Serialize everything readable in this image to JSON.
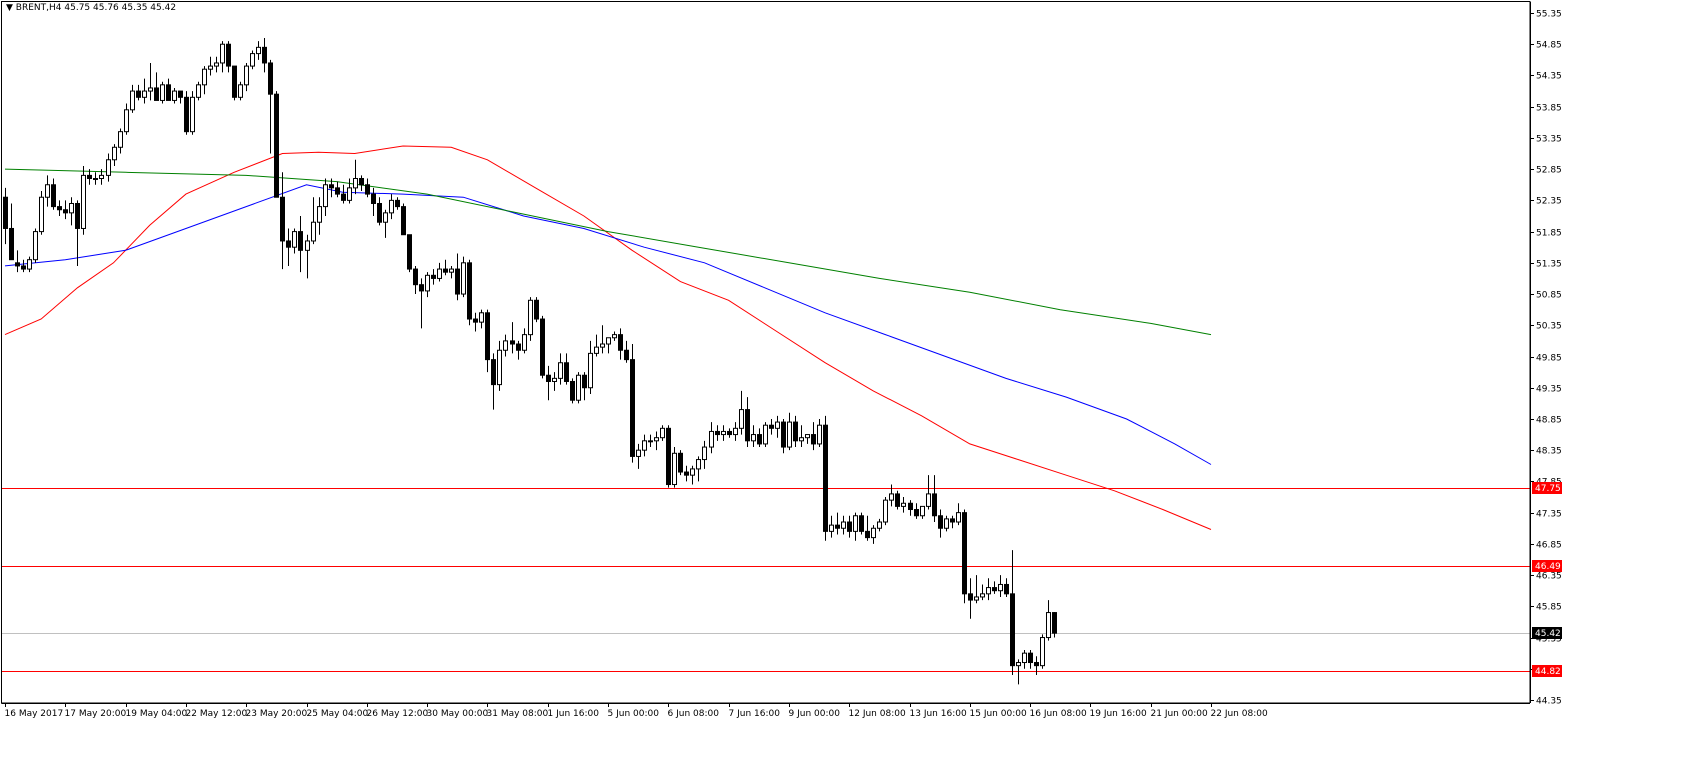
{
  "header": {
    "arrow": "▼",
    "symbol": "BRENT,H4",
    "open": "45.75",
    "high": "45.76",
    "low": "45.35",
    "close": "45.42"
  },
  "chart_data": {
    "type": "candlestick",
    "symbol": "BRENT",
    "timeframe": "H4",
    "y_axis": {
      "ylim": [
        44.35,
        55.35
      ],
      "ticks": [
        "55.35",
        "54.85",
        "54.35",
        "53.85",
        "53.35",
        "52.85",
        "52.35",
        "51.85",
        "51.35",
        "50.85",
        "50.35",
        "49.85",
        "49.35",
        "48.85",
        "48.35",
        "47.85",
        "47.35",
        "46.85",
        "46.35",
        "45.85",
        "45.35",
        "44.85",
        "44.35"
      ]
    },
    "x_axis": {
      "labels": [
        {
          "bar": 0,
          "text": "16 May 2017"
        },
        {
          "bar": 10,
          "text": "17 May 20:00"
        },
        {
          "bar": 20,
          "text": "19 May 04:00"
        },
        {
          "bar": 30,
          "text": "22 May 12:00"
        },
        {
          "bar": 40,
          "text": "23 May 20:00"
        },
        {
          "bar": 50,
          "text": "25 May 04:00"
        },
        {
          "bar": 60,
          "text": "26 May 12:00"
        },
        {
          "bar": 70,
          "text": "30 May 00:00"
        },
        {
          "bar": 80,
          "text": "31 May 08:00"
        },
        {
          "bar": 90,
          "text": "1 Jun 16:00"
        },
        {
          "bar": 100,
          "text": "5 Jun 00:00"
        },
        {
          "bar": 110,
          "text": "6 Jun 08:00"
        },
        {
          "bar": 120,
          "text": "7 Jun 16:00"
        },
        {
          "bar": 130,
          "text": "9 Jun 00:00"
        },
        {
          "bar": 140,
          "text": "12 Jun 08:00"
        },
        {
          "bar": 150,
          "text": "13 Jun 16:00"
        },
        {
          "bar": 160,
          "text": "15 Jun 00:00"
        },
        {
          "bar": 170,
          "text": "16 Jun 08:00"
        },
        {
          "bar": 180,
          "text": "19 Jun 16:00"
        },
        {
          "bar": 190,
          "text": "21 Jun 00:00"
        },
        {
          "bar": 200,
          "text": "22 Jun 08:00"
        }
      ]
    },
    "levels": [
      {
        "value": 47.75,
        "label": "47.75",
        "color": "#ff0000"
      },
      {
        "value": 46.49,
        "label": "46.49",
        "color": "#ff0000"
      },
      {
        "value": 44.82,
        "label": "44.82",
        "color": "#ff0000"
      }
    ],
    "current_price": {
      "value": 45.42,
      "label": "45.42",
      "line_color": "#c0c0c0"
    },
    "colors": {
      "background": "#ffffff",
      "candle": "#000000",
      "bull_body": "#ffffff",
      "bear_body": "#000000",
      "ma_red": "#ff0000",
      "ma_blue": "#0000ff",
      "ma_green": "#008000"
    },
    "candles_ohlc": [
      [
        52.4,
        52.55,
        51.65,
        51.9
      ],
      [
        51.9,
        52.3,
        51.4,
        51.4
      ],
      [
        51.35,
        51.55,
        51.2,
        51.3
      ],
      [
        51.3,
        51.4,
        51.2,
        51.25
      ],
      [
        51.25,
        51.45,
        51.2,
        51.4
      ],
      [
        51.4,
        51.9,
        51.35,
        51.85
      ],
      [
        51.85,
        52.5,
        51.8,
        52.4
      ],
      [
        52.4,
        52.75,
        52.25,
        52.6
      ],
      [
        52.6,
        52.7,
        52.2,
        52.25
      ],
      [
        52.25,
        52.35,
        52.1,
        52.2
      ],
      [
        52.2,
        52.35,
        52.05,
        52.15
      ],
      [
        52.15,
        52.4,
        51.95,
        52.3
      ],
      [
        52.3,
        52.35,
        51.3,
        51.9
      ],
      [
        51.9,
        52.9,
        51.8,
        52.75
      ],
      [
        52.75,
        52.85,
        52.6,
        52.7
      ],
      [
        52.7,
        52.8,
        52.6,
        52.7
      ],
      [
        52.7,
        52.85,
        52.6,
        52.75
      ],
      [
        52.75,
        53.1,
        52.65,
        53.0
      ],
      [
        53.0,
        53.25,
        52.9,
        53.2
      ],
      [
        53.2,
        53.5,
        53.1,
        53.45
      ],
      [
        53.45,
        53.9,
        53.4,
        53.8
      ],
      [
        53.8,
        54.2,
        53.75,
        54.1
      ],
      [
        54.1,
        54.2,
        53.95,
        54.0
      ],
      [
        54.0,
        54.3,
        53.9,
        54.1
      ],
      [
        54.1,
        54.55,
        53.95,
        54.15
      ],
      [
        54.15,
        54.4,
        53.95,
        53.95
      ],
      [
        53.95,
        54.25,
        53.9,
        54.2
      ],
      [
        54.2,
        54.3,
        53.95,
        53.95
      ],
      [
        53.95,
        54.15,
        53.9,
        54.1
      ],
      [
        54.1,
        54.1,
        53.9,
        54.0
      ],
      [
        54.0,
        54.1,
        53.4,
        53.45
      ],
      [
        53.45,
        54.1,
        53.4,
        54.0
      ],
      [
        54.0,
        54.25,
        53.95,
        54.2
      ],
      [
        54.2,
        54.5,
        54.05,
        54.45
      ],
      [
        54.45,
        54.65,
        54.35,
        54.5
      ],
      [
        54.5,
        54.65,
        54.4,
        54.55
      ],
      [
        54.55,
        54.9,
        54.4,
        54.85
      ],
      [
        54.85,
        54.9,
        54.4,
        54.5
      ],
      [
        54.5,
        54.5,
        53.95,
        54.0
      ],
      [
        54.0,
        54.25,
        53.95,
        54.2
      ],
      [
        54.2,
        54.55,
        54.1,
        54.5
      ],
      [
        54.5,
        54.75,
        54.45,
        54.7
      ],
      [
        54.7,
        54.9,
        54.6,
        54.8
      ],
      [
        54.8,
        54.95,
        54.4,
        54.55
      ],
      [
        54.55,
        54.6,
        53.1,
        54.05
      ],
      [
        54.05,
        54.1,
        52.4,
        52.4
      ],
      [
        52.4,
        52.8,
        51.25,
        51.7
      ],
      [
        51.7,
        51.9,
        51.3,
        51.6
      ],
      [
        51.6,
        51.9,
        51.5,
        51.85
      ],
      [
        51.85,
        52.1,
        51.2,
        51.55
      ],
      [
        51.55,
        51.8,
        51.1,
        51.7
      ],
      [
        51.7,
        52.4,
        51.65,
        52.0
      ],
      [
        52.0,
        52.4,
        51.8,
        52.25
      ],
      [
        52.25,
        52.7,
        52.1,
        52.6
      ],
      [
        52.6,
        52.7,
        52.4,
        52.55
      ],
      [
        52.55,
        52.65,
        52.4,
        52.45
      ],
      [
        52.45,
        52.6,
        52.3,
        52.35
      ],
      [
        52.35,
        52.7,
        52.3,
        52.55
      ],
      [
        52.55,
        53.0,
        52.45,
        52.7
      ],
      [
        52.7,
        52.75,
        52.5,
        52.6
      ],
      [
        52.6,
        52.7,
        52.4,
        52.45
      ],
      [
        52.45,
        52.55,
        52.1,
        52.3
      ],
      [
        52.3,
        52.4,
        51.95,
        52.0
      ],
      [
        52.0,
        52.2,
        51.75,
        52.15
      ],
      [
        52.15,
        52.45,
        52.05,
        52.35
      ],
      [
        52.35,
        52.4,
        52.2,
        52.25
      ],
      [
        52.25,
        52.3,
        51.8,
        51.8
      ],
      [
        51.8,
        51.8,
        51.2,
        51.25
      ],
      [
        51.25,
        51.3,
        50.85,
        51.0
      ],
      [
        51.0,
        51.1,
        50.3,
        50.9
      ],
      [
        50.9,
        51.2,
        50.8,
        51.15
      ],
      [
        51.15,
        51.25,
        51.0,
        51.1
      ],
      [
        51.1,
        51.35,
        51.05,
        51.25
      ],
      [
        51.25,
        51.4,
        51.15,
        51.2
      ],
      [
        51.2,
        51.3,
        51.1,
        51.25
      ],
      [
        51.25,
        51.5,
        50.75,
        50.85
      ],
      [
        50.85,
        51.45,
        50.8,
        51.35
      ],
      [
        51.35,
        51.4,
        50.35,
        50.45
      ],
      [
        50.45,
        50.55,
        50.25,
        50.4
      ],
      [
        50.4,
        50.6,
        50.3,
        50.55
      ],
      [
        50.55,
        50.6,
        49.6,
        49.8
      ],
      [
        49.8,
        49.9,
        49.0,
        49.4
      ],
      [
        49.4,
        50.1,
        49.3,
        49.95
      ],
      [
        49.95,
        50.2,
        49.85,
        50.1
      ],
      [
        50.1,
        50.4,
        49.9,
        50.05
      ],
      [
        50.05,
        50.1,
        49.8,
        49.95
      ],
      [
        49.95,
        50.3,
        49.9,
        50.2
      ],
      [
        50.2,
        50.8,
        50.1,
        50.75
      ],
      [
        50.75,
        50.8,
        50.4,
        50.45
      ],
      [
        50.45,
        50.5,
        49.5,
        49.55
      ],
      [
        49.55,
        49.7,
        49.15,
        49.45
      ],
      [
        49.45,
        49.6,
        49.3,
        49.5
      ],
      [
        49.5,
        49.9,
        49.4,
        49.75
      ],
      [
        49.75,
        49.9,
        49.4,
        49.45
      ],
      [
        49.45,
        49.5,
        49.1,
        49.15
      ],
      [
        49.15,
        49.6,
        49.1,
        49.55
      ],
      [
        49.55,
        49.6,
        49.15,
        49.35
      ],
      [
        49.35,
        50.1,
        49.25,
        49.9
      ],
      [
        49.9,
        50.2,
        49.85,
        50.0
      ],
      [
        50.0,
        50.35,
        49.9,
        50.05
      ],
      [
        50.05,
        50.15,
        49.9,
        50.15
      ],
      [
        50.15,
        50.25,
        50.1,
        50.2
      ],
      [
        50.2,
        50.3,
        49.8,
        49.95
      ],
      [
        49.95,
        50.1,
        49.75,
        49.8
      ],
      [
        49.8,
        50.05,
        48.15,
        48.25
      ],
      [
        48.25,
        48.45,
        48.05,
        48.35
      ],
      [
        48.35,
        48.6,
        48.25,
        48.5
      ],
      [
        48.5,
        48.6,
        48.4,
        48.5
      ],
      [
        48.5,
        48.65,
        48.35,
        48.55
      ],
      [
        48.55,
        48.75,
        48.5,
        48.7
      ],
      [
        48.7,
        48.75,
        47.75,
        47.8
      ],
      [
        47.8,
        48.4,
        47.75,
        48.3
      ],
      [
        48.3,
        48.35,
        47.95,
        48.0
      ],
      [
        48.0,
        48.1,
        47.85,
        47.95
      ],
      [
        47.95,
        48.1,
        47.8,
        48.05
      ],
      [
        48.05,
        48.25,
        47.85,
        48.2
      ],
      [
        48.2,
        48.5,
        48.05,
        48.4
      ],
      [
        48.4,
        48.8,
        48.3,
        48.65
      ],
      [
        48.65,
        48.75,
        48.5,
        48.6
      ],
      [
        48.6,
        48.75,
        48.5,
        48.65
      ],
      [
        48.65,
        48.7,
        48.55,
        48.6
      ],
      [
        48.6,
        48.8,
        48.5,
        48.7
      ],
      [
        48.7,
        49.3,
        48.6,
        49.0
      ],
      [
        49.0,
        49.2,
        48.4,
        48.5
      ],
      [
        48.5,
        48.75,
        48.4,
        48.6
      ],
      [
        48.6,
        48.7,
        48.4,
        48.45
      ],
      [
        48.45,
        48.8,
        48.4,
        48.75
      ],
      [
        48.75,
        48.85,
        48.6,
        48.7
      ],
      [
        48.7,
        48.9,
        48.55,
        48.8
      ],
      [
        48.8,
        48.85,
        48.3,
        48.4
      ],
      [
        48.4,
        48.95,
        48.35,
        48.8
      ],
      [
        48.8,
        48.9,
        48.4,
        48.5
      ],
      [
        48.5,
        48.75,
        48.4,
        48.55
      ],
      [
        48.55,
        48.6,
        48.45,
        48.6
      ],
      [
        48.6,
        48.8,
        48.35,
        48.45
      ],
      [
        48.45,
        48.85,
        48.4,
        48.75
      ],
      [
        48.75,
        48.9,
        46.9,
        47.05
      ],
      [
        47.05,
        47.3,
        46.95,
        47.15
      ],
      [
        47.15,
        47.35,
        47.0,
        47.1
      ],
      [
        47.1,
        47.3,
        47.0,
        47.2
      ],
      [
        47.2,
        47.3,
        46.95,
        47.05
      ],
      [
        47.05,
        47.35,
        46.9,
        47.3
      ],
      [
        47.3,
        47.35,
        47.0,
        47.05
      ],
      [
        47.05,
        47.3,
        46.9,
        46.95
      ],
      [
        46.95,
        47.15,
        46.85,
        47.1
      ],
      [
        47.1,
        47.25,
        47.05,
        47.2
      ],
      [
        47.2,
        47.6,
        47.15,
        47.55
      ],
      [
        47.55,
        47.8,
        47.45,
        47.65
      ],
      [
        47.65,
        47.7,
        47.4,
        47.45
      ],
      [
        47.45,
        47.6,
        47.35,
        47.5
      ],
      [
        47.5,
        47.55,
        47.3,
        47.4
      ],
      [
        47.4,
        47.5,
        47.25,
        47.3
      ],
      [
        47.3,
        47.45,
        47.25,
        47.45
      ],
      [
        47.45,
        47.95,
        47.4,
        47.65
      ],
      [
        47.65,
        47.95,
        47.2,
        47.3
      ],
      [
        47.3,
        47.4,
        46.95,
        47.1
      ],
      [
        47.1,
        47.3,
        47.05,
        47.25
      ],
      [
        47.25,
        47.3,
        47.1,
        47.2
      ],
      [
        47.2,
        47.5,
        47.15,
        47.35
      ],
      [
        47.35,
        47.4,
        45.9,
        46.05
      ],
      [
        46.05,
        46.3,
        45.65,
        45.95
      ],
      [
        45.95,
        46.35,
        45.9,
        46.0
      ],
      [
        46.0,
        46.2,
        45.95,
        46.05
      ],
      [
        46.05,
        46.3,
        45.95,
        46.15
      ],
      [
        46.15,
        46.25,
        46.05,
        46.1
      ],
      [
        46.1,
        46.35,
        46.0,
        46.2
      ],
      [
        46.2,
        46.3,
        46.0,
        46.05
      ],
      [
        46.05,
        46.75,
        44.75,
        44.9
      ],
      [
        44.9,
        45.0,
        44.6,
        44.95
      ],
      [
        44.95,
        45.15,
        44.85,
        45.1
      ],
      [
        45.1,
        45.15,
        44.85,
        44.95
      ],
      [
        44.95,
        45.05,
        44.75,
        44.9
      ],
      [
        44.9,
        45.4,
        44.85,
        45.35
      ],
      [
        45.35,
        45.95,
        45.3,
        45.75
      ],
      [
        45.75,
        45.76,
        45.35,
        45.42
      ]
    ],
    "ma_red": [
      {
        "bar": 0,
        "value": 50.2
      },
      {
        "bar": 6,
        "value": 50.45
      },
      {
        "bar": 12,
        "value": 50.95
      },
      {
        "bar": 18,
        "value": 51.35
      },
      {
        "bar": 24,
        "value": 51.95
      },
      {
        "bar": 30,
        "value": 52.45
      },
      {
        "bar": 38,
        "value": 52.8
      },
      {
        "bar": 46,
        "value": 53.1
      },
      {
        "bar": 52,
        "value": 53.12
      },
      {
        "bar": 58,
        "value": 53.1
      },
      {
        "bar": 66,
        "value": 53.22
      },
      {
        "bar": 74,
        "value": 53.2
      },
      {
        "bar": 80,
        "value": 53.0
      },
      {
        "bar": 88,
        "value": 52.55
      },
      {
        "bar": 96,
        "value": 52.1
      },
      {
        "bar": 104,
        "value": 51.55
      },
      {
        "bar": 112,
        "value": 51.05
      },
      {
        "bar": 120,
        "value": 50.75
      },
      {
        "bar": 128,
        "value": 50.25
      },
      {
        "bar": 136,
        "value": 49.75
      },
      {
        "bar": 144,
        "value": 49.3
      },
      {
        "bar": 152,
        "value": 48.9
      },
      {
        "bar": 160,
        "value": 48.45
      },
      {
        "bar": 168,
        "value": 48.2
      },
      {
        "bar": 176,
        "value": 47.95
      },
      {
        "bar": 184,
        "value": 47.7
      },
      {
        "bar": 192,
        "value": 47.4
      },
      {
        "bar": 200,
        "value": 47.08
      }
    ],
    "ma_blue": [
      {
        "bar": 0,
        "value": 51.3
      },
      {
        "bar": 10,
        "value": 51.4
      },
      {
        "bar": 20,
        "value": 51.55
      },
      {
        "bar": 30,
        "value": 51.9
      },
      {
        "bar": 40,
        "value": 52.25
      },
      {
        "bar": 50,
        "value": 52.6
      },
      {
        "bar": 56,
        "value": 52.48
      },
      {
        "bar": 66,
        "value": 52.45
      },
      {
        "bar": 76,
        "value": 52.4
      },
      {
        "bar": 86,
        "value": 52.1
      },
      {
        "bar": 96,
        "value": 51.9
      },
      {
        "bar": 106,
        "value": 51.6
      },
      {
        "bar": 116,
        "value": 51.35
      },
      {
        "bar": 126,
        "value": 50.95
      },
      {
        "bar": 136,
        "value": 50.55
      },
      {
        "bar": 146,
        "value": 50.2
      },
      {
        "bar": 156,
        "value": 49.85
      },
      {
        "bar": 166,
        "value": 49.5
      },
      {
        "bar": 176,
        "value": 49.2
      },
      {
        "bar": 186,
        "value": 48.85
      },
      {
        "bar": 194,
        "value": 48.45
      },
      {
        "bar": 200,
        "value": 48.12
      }
    ],
    "ma_green": [
      {
        "bar": 0,
        "value": 52.85
      },
      {
        "bar": 20,
        "value": 52.8
      },
      {
        "bar": 40,
        "value": 52.75
      },
      {
        "bar": 55,
        "value": 52.65
      },
      {
        "bar": 70,
        "value": 52.45
      },
      {
        "bar": 85,
        "value": 52.15
      },
      {
        "bar": 100,
        "value": 51.85
      },
      {
        "bar": 115,
        "value": 51.6
      },
      {
        "bar": 130,
        "value": 51.35
      },
      {
        "bar": 145,
        "value": 51.1
      },
      {
        "bar": 160,
        "value": 50.88
      },
      {
        "bar": 175,
        "value": 50.6
      },
      {
        "bar": 190,
        "value": 50.38
      },
      {
        "bar": 200,
        "value": 50.2
      }
    ]
  }
}
